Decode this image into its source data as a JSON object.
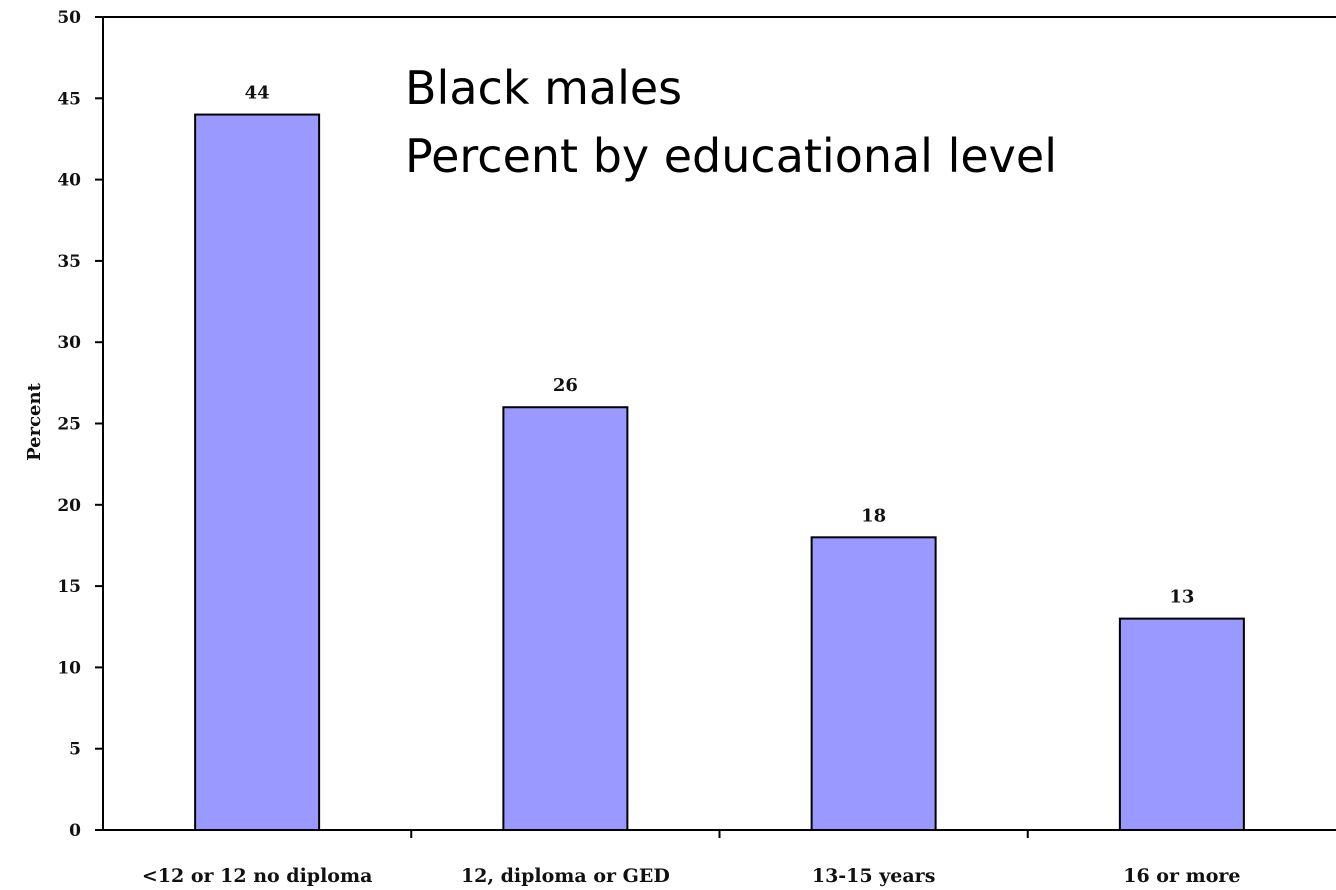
{
  "chart_data": {
    "type": "bar",
    "title": "Black males",
    "subtitle": "Percent by educational level",
    "ylabel": "Percent",
    "xlabel": "",
    "categories": [
      "<12 or 12 no diploma",
      "12, diploma or GED",
      "13-15 years",
      "16 or more"
    ],
    "values": [
      44,
      26,
      18,
      13
    ],
    "data_labels": [
      "44",
      "26",
      "18",
      "13"
    ],
    "ylim": [
      0,
      50
    ],
    "yticks": [
      0,
      5,
      10,
      15,
      20,
      25,
      30,
      35,
      40,
      45,
      50
    ],
    "grid": false,
    "legend": "none",
    "bar_color": "#9999ff",
    "bar_edge_color": "#000000"
  }
}
